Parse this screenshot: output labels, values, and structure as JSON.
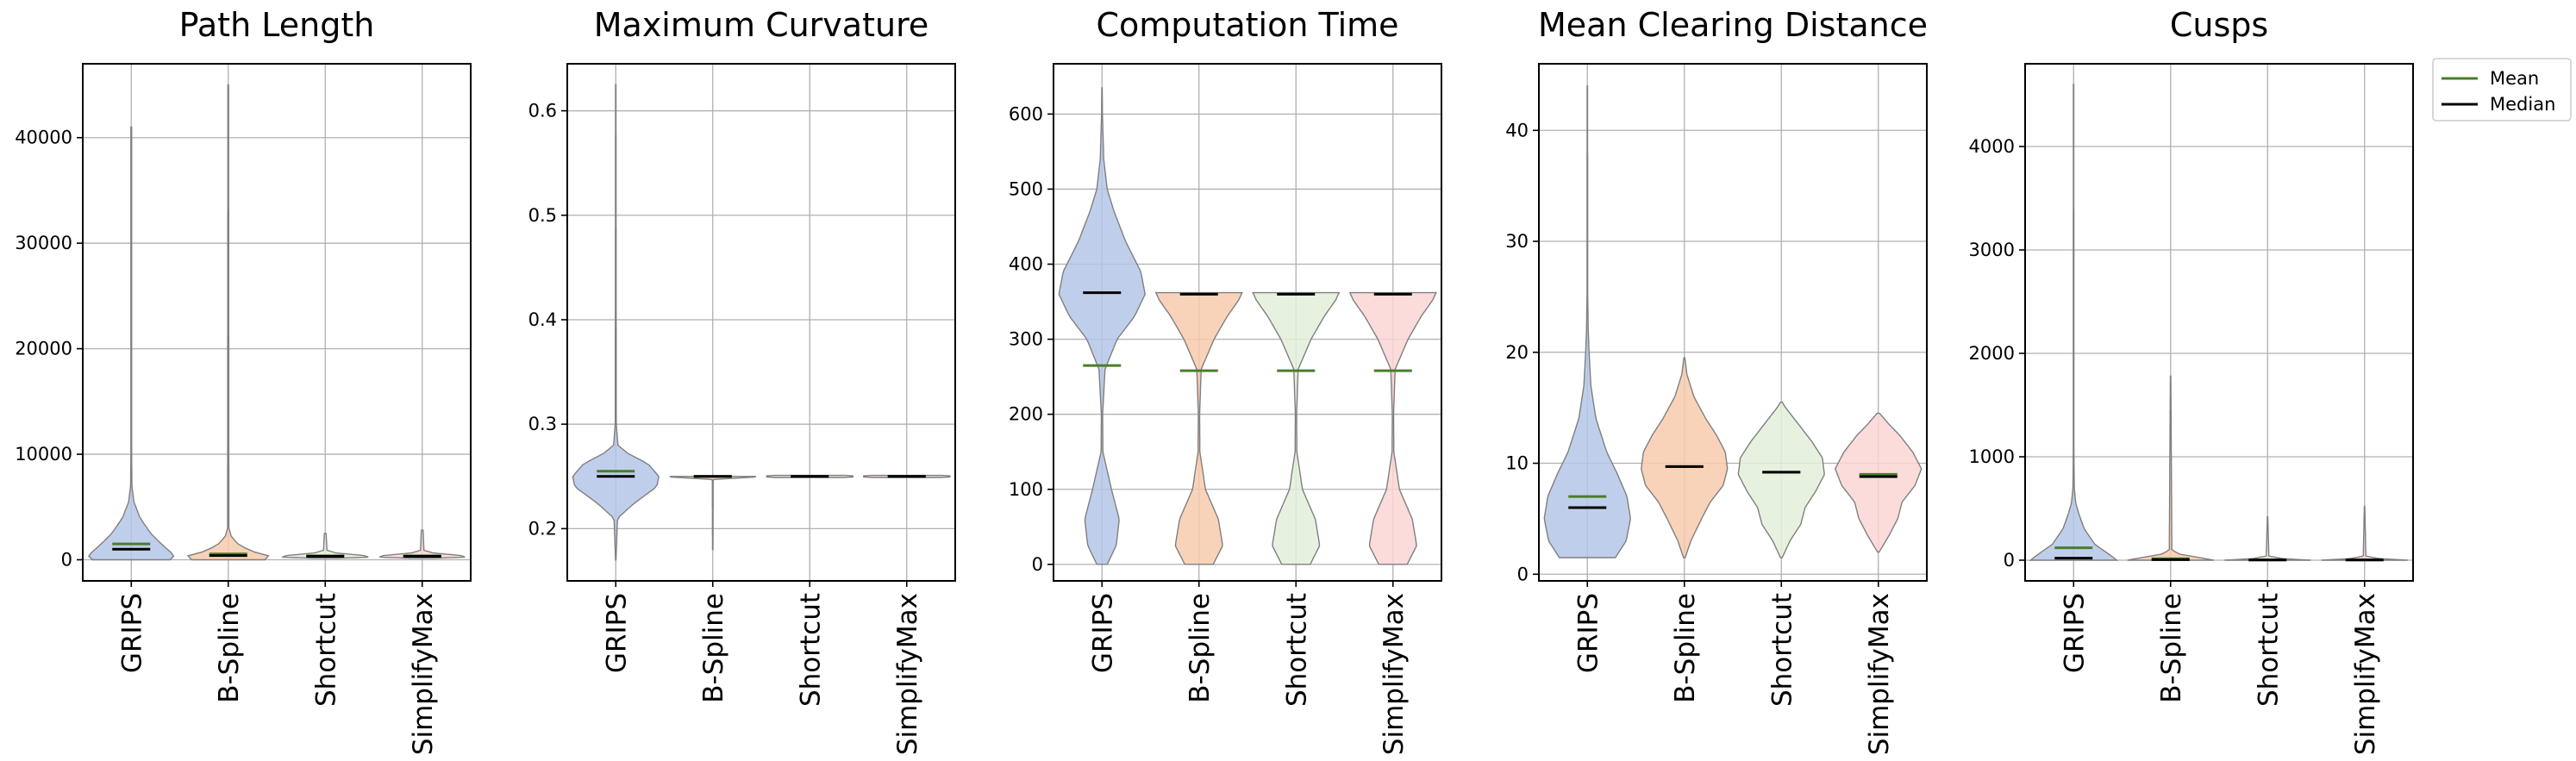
{
  "colors": {
    "fills": [
      "#b4c7e7",
      "#f8cbad",
      "#e2f0d9",
      "#fbd5d5"
    ],
    "mean": "#4a7d2a",
    "median": "#000000"
  },
  "legend": {
    "mean_label": "Mean",
    "median_label": "Median"
  },
  "chart_data": [
    {
      "type": "violin",
      "title": "Path Length",
      "categories": [
        "GRIPS",
        "B-Spline",
        "Shortcut",
        "SimplifyMax"
      ],
      "ylim": [
        -2000,
        47000
      ],
      "yticks": [
        0,
        10000,
        20000,
        30000,
        40000
      ],
      "grid": true,
      "violins": [
        {
          "min": 0,
          "max": 41000,
          "mean": 1500,
          "median": 1000,
          "profile": [
            [
              0,
              0.9
            ],
            [
              400,
              1.0
            ],
            [
              1500,
              0.7
            ],
            [
              2500,
              0.45
            ],
            [
              4000,
              0.2
            ],
            [
              5500,
              0.06
            ],
            [
              7000,
              0.015
            ],
            [
              10000,
              0.008
            ],
            [
              41000,
              0.008
            ]
          ]
        },
        {
          "min": 0,
          "max": 45000,
          "mean": 550,
          "median": 400,
          "profile": [
            [
              0,
              0.85
            ],
            [
              300,
              1.0
            ],
            [
              800,
              0.55
            ],
            [
              1400,
              0.25
            ],
            [
              2200,
              0.07
            ],
            [
              3000,
              0.015
            ],
            [
              45000,
              0.008
            ]
          ]
        },
        {
          "min": 150,
          "max": 2500,
          "mean": 380,
          "median": 330,
          "profile": [
            [
              150,
              0.3
            ],
            [
              250,
              1.0
            ],
            [
              400,
              0.9
            ],
            [
              650,
              0.25
            ],
            [
              900,
              0.04
            ],
            [
              2500,
              0.02
            ]
          ]
        },
        {
          "min": 150,
          "max": 2800,
          "mean": 380,
          "median": 330,
          "profile": [
            [
              150,
              0.3
            ],
            [
              250,
              1.0
            ],
            [
              400,
              0.9
            ],
            [
              650,
              0.25
            ],
            [
              900,
              0.04
            ],
            [
              2800,
              0.02
            ]
          ]
        }
      ]
    },
    {
      "type": "violin",
      "title": "Maximum Curvature",
      "categories": [
        "GRIPS",
        "B-Spline",
        "Shortcut",
        "SimplifyMax"
      ],
      "ylim": [
        0.15,
        0.645
      ],
      "yticks": [
        0.2,
        0.3,
        0.4,
        0.5,
        0.6
      ],
      "grid": true,
      "violins": [
        {
          "min": 0.17,
          "max": 0.625,
          "mean": 0.255,
          "median": 0.25,
          "profile": [
            [
              0.17,
              0.005
            ],
            [
              0.21,
              0.04
            ],
            [
              0.225,
              0.45
            ],
            [
              0.24,
              0.95
            ],
            [
              0.25,
              1.0
            ],
            [
              0.262,
              0.75
            ],
            [
              0.272,
              0.28
            ],
            [
              0.28,
              0.05
            ],
            [
              0.3,
              0.012
            ],
            [
              0.625,
              0.005
            ]
          ]
        },
        {
          "min": 0.18,
          "max": 0.25,
          "mean": 0.25,
          "median": 0.25,
          "profile": [
            [
              0.18,
              0.005
            ],
            [
              0.247,
              0.01
            ],
            [
              0.2495,
              1.0
            ],
            [
              0.2505,
              1.0
            ],
            [
              0.253,
              0.01
            ]
          ]
        },
        {
          "min": 0.249,
          "max": 0.251,
          "mean": 0.25,
          "median": 0.25,
          "profile": [
            [
              0.247,
              0.01
            ],
            [
              0.2495,
              1.0
            ],
            [
              0.2505,
              1.0
            ],
            [
              0.253,
              0.01
            ]
          ]
        },
        {
          "min": 0.249,
          "max": 0.251,
          "mean": 0.25,
          "median": 0.25,
          "profile": [
            [
              0.247,
              0.01
            ],
            [
              0.2495,
              1.0
            ],
            [
              0.2505,
              1.0
            ],
            [
              0.253,
              0.01
            ]
          ]
        }
      ]
    },
    {
      "type": "violin",
      "title": "Computation Time",
      "categories": [
        "GRIPS",
        "B-Spline",
        "Shortcut",
        "SimplifyMax"
      ],
      "ylim": [
        -22,
        667
      ],
      "yticks": [
        0,
        100,
        200,
        300,
        400,
        500,
        600
      ],
      "grid": true,
      "violins": [
        {
          "min": 0,
          "max": 635,
          "mean": 265,
          "median": 362,
          "profile": [
            [
              0,
              0.12
            ],
            [
              25,
              0.33
            ],
            [
              60,
              0.4
            ],
            [
              100,
              0.22
            ],
            [
              150,
              0.02
            ],
            [
              200,
              0.015
            ],
            [
              260,
              0.07
            ],
            [
              300,
              0.35
            ],
            [
              330,
              0.75
            ],
            [
              360,
              1.0
            ],
            [
              390,
              0.9
            ],
            [
              430,
              0.55
            ],
            [
              470,
              0.28
            ],
            [
              500,
              0.12
            ],
            [
              540,
              0.04
            ],
            [
              600,
              0.01
            ],
            [
              635,
              0.005
            ]
          ]
        },
        {
          "min": 0,
          "max": 362,
          "mean": 258,
          "median": 360,
          "profile": [
            [
              0,
              0.33
            ],
            [
              25,
              0.55
            ],
            [
              60,
              0.45
            ],
            [
              100,
              0.15
            ],
            [
              150,
              0.02
            ],
            [
              200,
              0.015
            ],
            [
              260,
              0.05
            ],
            [
              300,
              0.35
            ],
            [
              330,
              0.65
            ],
            [
              352,
              0.92
            ],
            [
              362,
              1.0
            ]
          ]
        },
        {
          "min": 0,
          "max": 362,
          "mean": 258,
          "median": 360,
          "profile": [
            [
              0,
              0.33
            ],
            [
              25,
              0.55
            ],
            [
              60,
              0.45
            ],
            [
              100,
              0.15
            ],
            [
              150,
              0.02
            ],
            [
              200,
              0.015
            ],
            [
              260,
              0.05
            ],
            [
              300,
              0.35
            ],
            [
              330,
              0.65
            ],
            [
              352,
              0.92
            ],
            [
              362,
              1.0
            ]
          ]
        },
        {
          "min": 0,
          "max": 362,
          "mean": 258,
          "median": 360,
          "profile": [
            [
              0,
              0.33
            ],
            [
              25,
              0.55
            ],
            [
              60,
              0.45
            ],
            [
              100,
              0.15
            ],
            [
              150,
              0.02
            ],
            [
              200,
              0.015
            ],
            [
              260,
              0.05
            ],
            [
              300,
              0.35
            ],
            [
              330,
              0.65
            ],
            [
              352,
              0.92
            ],
            [
              362,
              1.0
            ]
          ]
        }
      ]
    },
    {
      "type": "violin",
      "title": "Mean Clearing Distance",
      "categories": [
        "GRIPS",
        "B-Spline",
        "Shortcut",
        "SimplifyMax"
      ],
      "ylim": [
        -0.6,
        46
      ],
      "yticks": [
        0,
        10,
        20,
        30,
        40
      ],
      "grid": true,
      "violins": [
        {
          "min": 1.5,
          "max": 44,
          "mean": 7,
          "median": 6,
          "profile": [
            [
              1.5,
              0.65
            ],
            [
              3,
              0.9
            ],
            [
              5,
              1.0
            ],
            [
              7,
              0.92
            ],
            [
              9,
              0.7
            ],
            [
              11,
              0.45
            ],
            [
              14,
              0.2
            ],
            [
              17,
              0.08
            ],
            [
              20,
              0.04
            ],
            [
              22,
              0.02
            ],
            [
              25,
              0.008
            ],
            [
              44,
              0.005
            ]
          ]
        },
        {
          "min": 1.5,
          "max": 19.5,
          "mean": 9.7,
          "median": 9.7,
          "profile": [
            [
              1.5,
              0.02
            ],
            [
              3,
              0.15
            ],
            [
              5,
              0.4
            ],
            [
              6.5,
              0.6
            ],
            [
              8,
              0.9
            ],
            [
              9.5,
              1.0
            ],
            [
              11,
              0.95
            ],
            [
              12.5,
              0.75
            ],
            [
              14,
              0.5
            ],
            [
              16,
              0.22
            ],
            [
              18,
              0.06
            ],
            [
              19.5,
              0.01
            ]
          ]
        },
        {
          "min": 1.5,
          "max": 15.5,
          "mean": 9.2,
          "median": 9.2,
          "profile": [
            [
              1.5,
              0.02
            ],
            [
              3,
              0.2
            ],
            [
              4.5,
              0.45
            ],
            [
              6,
              0.55
            ],
            [
              7.5,
              0.8
            ],
            [
              9,
              1.0
            ],
            [
              10.5,
              0.95
            ],
            [
              12,
              0.7
            ],
            [
              13.5,
              0.4
            ],
            [
              15,
              0.1
            ],
            [
              15.5,
              0.02
            ]
          ]
        },
        {
          "min": 2,
          "max": 14.5,
          "mean": 9,
          "median": 8.8,
          "profile": [
            [
              2,
              0.02
            ],
            [
              3.5,
              0.25
            ],
            [
              5,
              0.45
            ],
            [
              6.5,
              0.55
            ],
            [
              8,
              0.85
            ],
            [
              9.5,
              1.0
            ],
            [
              11,
              0.8
            ],
            [
              12.5,
              0.5
            ],
            [
              13.5,
              0.25
            ],
            [
              14.5,
              0.03
            ]
          ]
        }
      ]
    },
    {
      "type": "violin",
      "title": "Cusps",
      "categories": [
        "GRIPS",
        "B-Spline",
        "Shortcut",
        "SimplifyMax"
      ],
      "ylim": [
        -200,
        4800
      ],
      "yticks": [
        0,
        1000,
        2000,
        3000,
        4000
      ],
      "grid": true,
      "violins": [
        {
          "min": 0,
          "max": 4600,
          "mean": 120,
          "median": 20,
          "profile": [
            [
              0,
              1.0
            ],
            [
              50,
              0.85
            ],
            [
              150,
              0.5
            ],
            [
              300,
              0.25
            ],
            [
              450,
              0.12
            ],
            [
              550,
              0.05
            ],
            [
              700,
              0.015
            ],
            [
              1000,
              0.008
            ],
            [
              4600,
              0.005
            ]
          ]
        },
        {
          "min": 0,
          "max": 1780,
          "mean": 15,
          "median": 5,
          "profile": [
            [
              0,
              1.0
            ],
            [
              30,
              0.6
            ],
            [
              60,
              0.2
            ],
            [
              100,
              0.03
            ],
            [
              1780,
              0.005
            ]
          ]
        },
        {
          "min": 0,
          "max": 420,
          "mean": 3,
          "median": 2,
          "profile": [
            [
              0,
              1.0
            ],
            [
              15,
              0.35
            ],
            [
              40,
              0.03
            ],
            [
              420,
              0.005
            ]
          ]
        },
        {
          "min": 0,
          "max": 520,
          "mean": 3,
          "median": 2,
          "profile": [
            [
              0,
              1.0
            ],
            [
              15,
              0.35
            ],
            [
              40,
              0.03
            ],
            [
              520,
              0.005
            ]
          ]
        }
      ]
    }
  ]
}
